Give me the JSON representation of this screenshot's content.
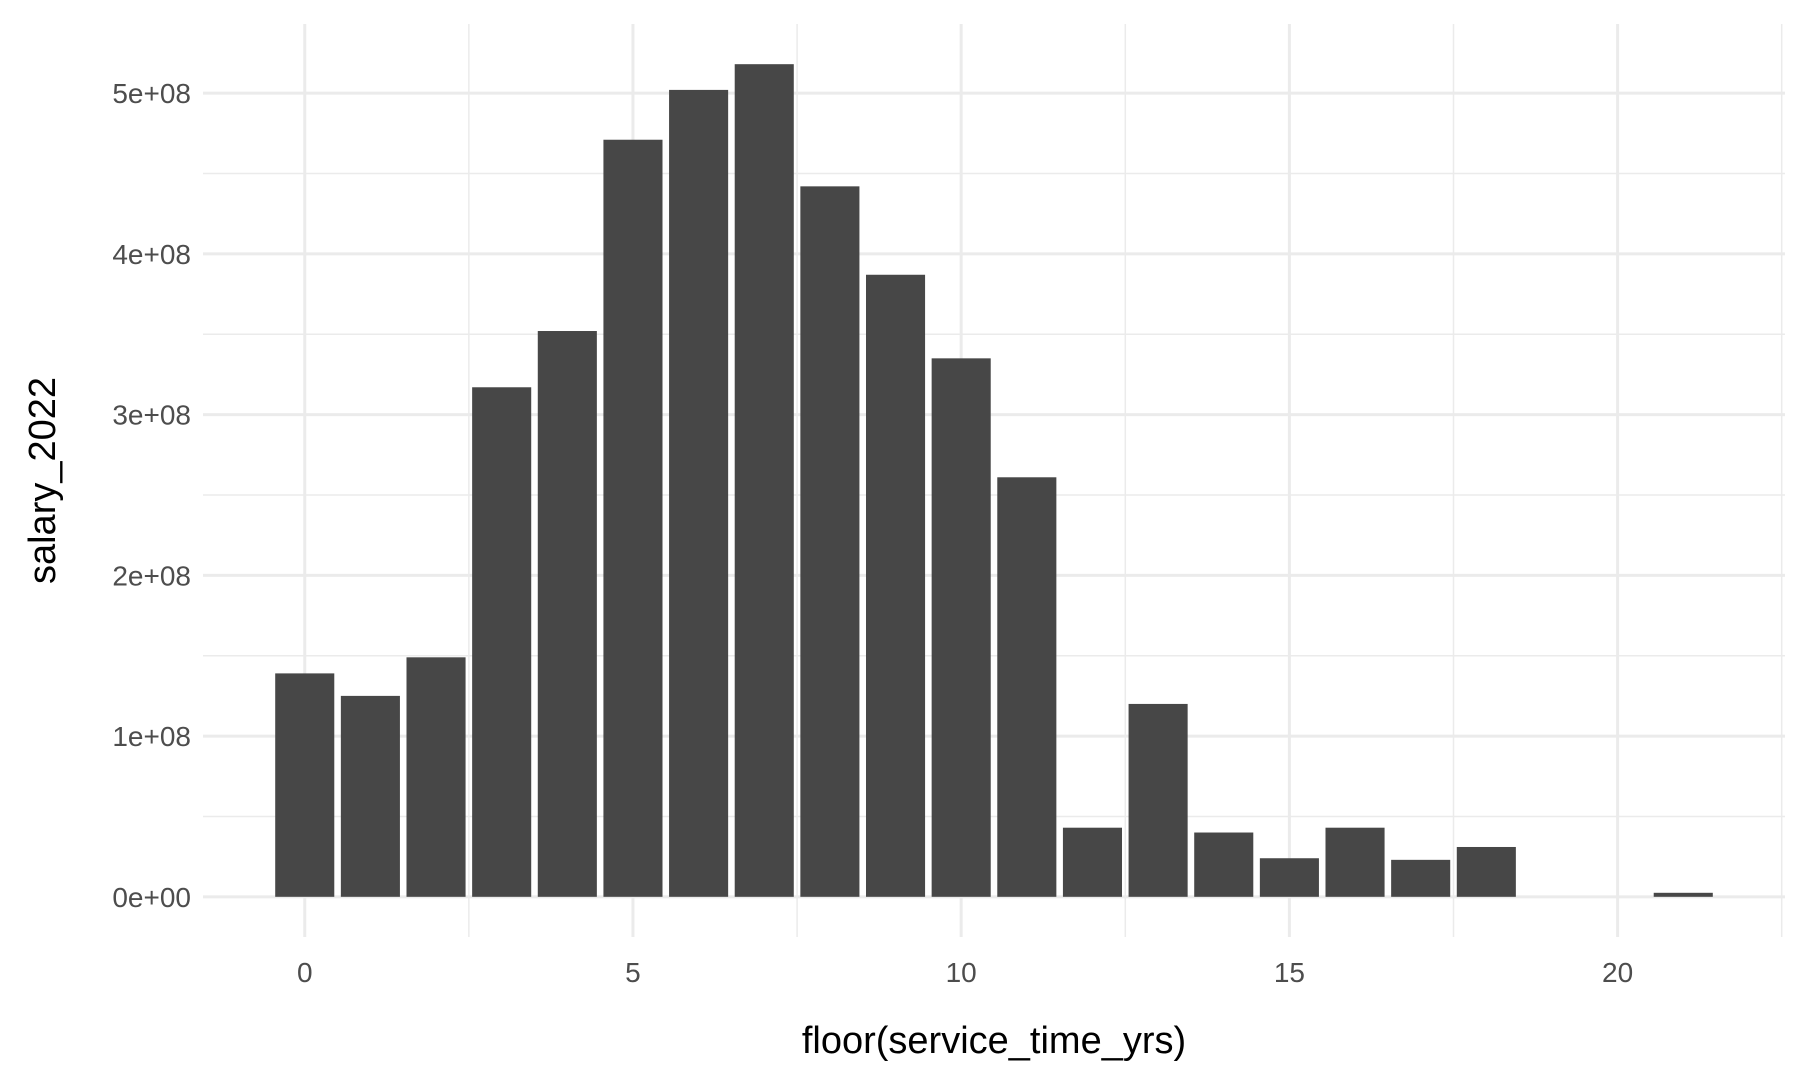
{
  "chart_data": {
    "type": "bar",
    "title": "",
    "xlabel": "floor(service_time_yrs)",
    "ylabel": "salary_2022",
    "x": [
      0,
      1,
      2,
      3,
      4,
      5,
      6,
      7,
      8,
      9,
      10,
      11,
      12,
      13,
      14,
      15,
      16,
      17,
      18,
      21
    ],
    "values": [
      139000000,
      125000000,
      149000000,
      317000000,
      352000000,
      471000000,
      502000000,
      518000000,
      442000000,
      387000000,
      335000000,
      261000000,
      43000000,
      120000000,
      40000000,
      24000000,
      43000000,
      23000000,
      31000000,
      2500000
    ],
    "xlim": [
      -1.55,
      22.55
    ],
    "ylim": [
      -25000000,
      543000000
    ],
    "x_ticks": [
      0,
      5,
      10,
      15,
      20
    ],
    "x_tick_labels": [
      "0",
      "5",
      "10",
      "15",
      "20"
    ],
    "y_ticks": [
      0,
      100000000,
      200000000,
      300000000,
      400000000,
      500000000
    ],
    "y_tick_labels": [
      "0e+00",
      "1e+08",
      "2e+08",
      "3e+08",
      "4e+08",
      "5e+08"
    ],
    "grid": true,
    "legend": "none",
    "colors": {
      "bar": "#474747",
      "grid": "#ebebeb",
      "tick_text": "#4d4d4d",
      "axis_title": "#000000"
    }
  }
}
